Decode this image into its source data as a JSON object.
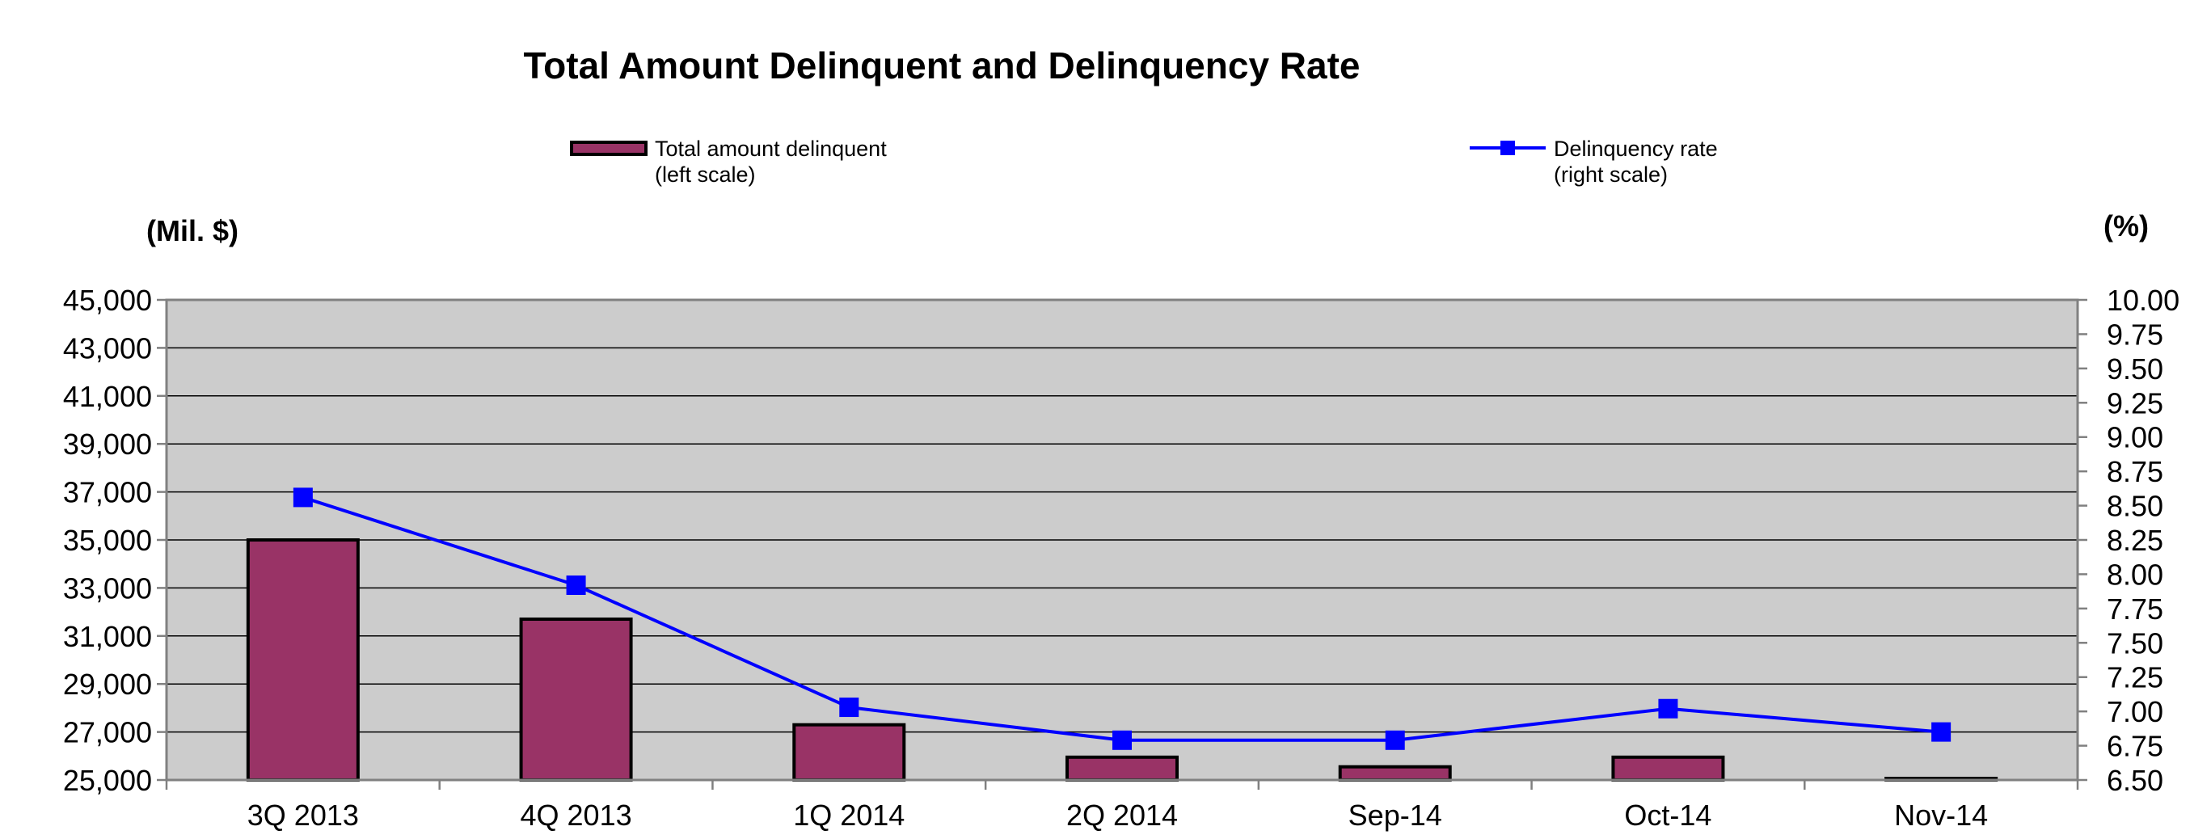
{
  "chart_data": {
    "type": "bar",
    "title": "Total Amount Delinquent and Delinquency Rate",
    "left_axis_label": "(Mil. $)",
    "right_axis_label": "(%)",
    "categories": [
      "3Q 2013",
      "4Q 2013",
      "1Q 2014",
      "2Q 2014",
      "Sep-14",
      "Oct-14",
      "Nov-14"
    ],
    "series": [
      {
        "name": "Total amount delinquent",
        "legend_lines": [
          "Total amount delinquent",
          "(left scale)"
        ],
        "type": "bar",
        "axis": "left",
        "color": "#993366",
        "values": [
          35000,
          31700,
          27300,
          25950,
          25550,
          25950,
          25050
        ]
      },
      {
        "name": "Delinquency rate",
        "legend_lines": [
          "Delinquency rate",
          "(right scale)"
        ],
        "type": "line",
        "axis": "right",
        "color": "#0000ff",
        "values": [
          8.56,
          7.92,
          7.03,
          6.79,
          6.79,
          7.02,
          6.85
        ]
      }
    ],
    "left_axis": {
      "ylim": [
        25000,
        45000
      ],
      "ticks": [
        "45,000",
        "43,000",
        "41,000",
        "39,000",
        "37,000",
        "35,000",
        "33,000",
        "31,000",
        "29,000",
        "27,000",
        "25,000"
      ],
      "tick_values": [
        45000,
        43000,
        41000,
        39000,
        37000,
        35000,
        33000,
        31000,
        29000,
        27000,
        25000
      ]
    },
    "right_axis": {
      "ylim": [
        6.5,
        10.0
      ],
      "ticks": [
        "10.00",
        "9.75",
        "9.50",
        "9.25",
        "9.00",
        "8.75",
        "8.50",
        "8.25",
        "8.00",
        "7.75",
        "7.50",
        "7.25",
        "7.00",
        "6.75",
        "6.50"
      ],
      "tick_values": [
        10.0,
        9.75,
        9.5,
        9.25,
        9.0,
        8.75,
        8.5,
        8.25,
        8.0,
        7.75,
        7.5,
        7.25,
        7.0,
        6.75,
        6.5
      ]
    },
    "grid": true,
    "legend_position": "top",
    "plot_background": "#cccccc",
    "bar_outline_color": "#000000"
  }
}
